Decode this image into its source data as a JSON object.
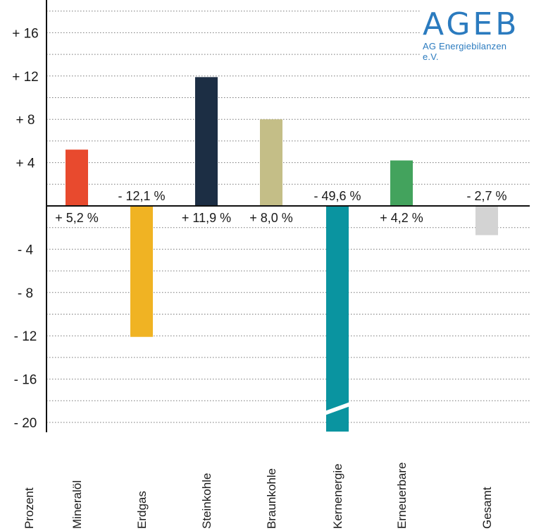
{
  "logo": {
    "main": "AGEB",
    "sub": "AG Energiebilanzen e.V."
  },
  "chart_data": {
    "type": "bar",
    "ylabel": "Prozent",
    "ylim": [
      -20,
      18
    ],
    "yticks": [
      -20,
      -16,
      -12,
      -8,
      -4,
      4,
      8,
      12,
      16
    ],
    "ytick_labels": [
      "- 20",
      "- 16",
      "- 12",
      "- 8",
      "- 4",
      "+ 4",
      "+ 8",
      "+ 12",
      "+ 16"
    ],
    "grid": "dotted horizontal",
    "categories": [
      "Mineralöl",
      "Erdgas",
      "Steinkohle",
      "Braunkohle",
      "Kernenergie",
      "Erneuerbare",
      "Gesamt"
    ],
    "values": [
      5.2,
      -12.1,
      11.9,
      8.0,
      -49.6,
      4.2,
      -2.7
    ],
    "value_labels": [
      "+ 5,2 %",
      "- 12,1 %",
      "+ 11,9 %",
      "+ 8,0 %",
      "- 49,6 %",
      "+ 4,2 %",
      "- 2,7 %"
    ],
    "colors": [
      "#e84a2e",
      "#f0b323",
      "#1c2e44",
      "#c4be87",
      "#0a94a0",
      "#43a35d",
      "#d3d3d3"
    ],
    "axis_break": "Kernenergie"
  }
}
